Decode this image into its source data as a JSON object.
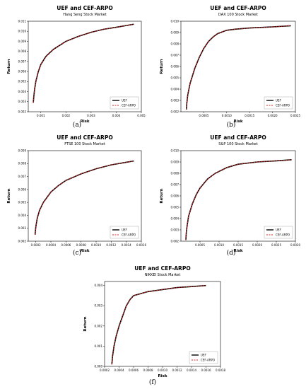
{
  "chart_data": [
    {
      "type": "line",
      "title": "UEF and CEF-ARPO",
      "subtitle": "Hang Seng Stock Market",
      "xlabel": "Risk",
      "ylabel": "Return",
      "caption": "(a)",
      "xlim": [
        0.0005,
        0.005
      ],
      "ylim": [
        0.002,
        0.011
      ],
      "xticks": [
        "0.001",
        "0.002",
        "0.003",
        "0.004",
        "0.005"
      ],
      "xtick_values": [
        0.001,
        0.002,
        0.003,
        0.004,
        0.005
      ],
      "yticks": [
        "0.002",
        "0.003",
        "0.004",
        "0.005",
        "0.006",
        "0.007",
        "0.008",
        "0.009",
        "0.010",
        "0.011"
      ],
      "ytick_values": [
        0.002,
        0.003,
        0.004,
        0.005,
        0.006,
        0.007,
        0.008,
        0.009,
        0.01,
        0.011
      ],
      "legend_position": "bottom-right",
      "series": [
        {
          "name": "UEF",
          "color": "#000000",
          "style": "solid",
          "x": [
            0.0007,
            0.00072,
            0.00075,
            0.0008,
            0.0009,
            0.001,
            0.0012,
            0.0015,
            0.002,
            0.0025,
            0.003,
            0.0035,
            0.004,
            0.0047
          ],
          "y": [
            0.0029,
            0.0035,
            0.0042,
            0.005,
            0.006,
            0.0067,
            0.0075,
            0.0082,
            0.009,
            0.0095,
            0.0099,
            0.0102,
            0.0104,
            0.0107
          ]
        },
        {
          "name": "CEF-ARPO",
          "color": "#e4201e",
          "style": "dashed",
          "x": [
            0.0007,
            0.00072,
            0.00075,
            0.0008,
            0.0009,
            0.001,
            0.0012,
            0.0015,
            0.002,
            0.0025,
            0.003,
            0.0035,
            0.004,
            0.0047
          ],
          "y": [
            0.0029,
            0.0035,
            0.0042,
            0.005,
            0.006,
            0.0067,
            0.0075,
            0.0082,
            0.009,
            0.0095,
            0.0099,
            0.0102,
            0.0104,
            0.0107
          ]
        }
      ]
    },
    {
      "type": "line",
      "title": "UEF and CEF-ARPO",
      "subtitle": "DAX 100 Stock Market",
      "xlabel": "Risk",
      "ylabel": "Return",
      "caption": "(b)",
      "xlim": [
        0.0,
        0.0025
      ],
      "ylim": [
        0.002,
        0.01
      ],
      "xticks": [
        "0.0005",
        "0.0010",
        "0.0015",
        "0.0020",
        "0.0025"
      ],
      "xtick_values": [
        0.0005,
        0.001,
        0.0015,
        0.002,
        0.0025
      ],
      "yticks": [
        "0.002",
        "0.003",
        "0.004",
        "0.005",
        "0.006",
        "0.007",
        "0.008",
        "0.009",
        "0.010"
      ],
      "ytick_values": [
        0.002,
        0.003,
        0.004,
        0.005,
        0.006,
        0.007,
        0.008,
        0.009,
        0.01
      ],
      "legend_position": "bottom-right",
      "series": [
        {
          "name": "UEF",
          "color": "#000000",
          "style": "solid",
          "x": [
            0.00012,
            0.00013,
            0.00015,
            0.0002,
            0.0003,
            0.0004,
            0.0005,
            0.0006,
            0.0007,
            0.0008,
            0.001,
            0.0012,
            0.0015,
            0.002,
            0.0024
          ],
          "y": [
            0.0022,
            0.0028,
            0.0035,
            0.0045,
            0.0058,
            0.0068,
            0.0076,
            0.0082,
            0.0086,
            0.0089,
            0.0092,
            0.0093,
            0.0094,
            0.0095,
            0.0096
          ]
        },
        {
          "name": "CEF-ARPO",
          "color": "#e4201e",
          "style": "dashed",
          "x": [
            0.00012,
            0.00013,
            0.00015,
            0.0002,
            0.0003,
            0.0004,
            0.0005,
            0.0006,
            0.0007,
            0.0008,
            0.001,
            0.0012,
            0.0015,
            0.002,
            0.0024
          ],
          "y": [
            0.0022,
            0.0028,
            0.0035,
            0.0045,
            0.0058,
            0.0068,
            0.0076,
            0.0082,
            0.0086,
            0.0089,
            0.0092,
            0.0093,
            0.0094,
            0.0095,
            0.0096
          ]
        }
      ]
    },
    {
      "type": "line",
      "title": "UEF and CEF-ARPO",
      "subtitle": "FTSE 100 Stock Market",
      "xlabel": "Risk",
      "ylabel": "Return",
      "caption": "(c)",
      "xlim": [
        0.0001,
        0.0016
      ],
      "ylim": [
        0.002,
        0.009
      ],
      "xticks": [
        "0.0002",
        "0.0004",
        "0.0006",
        "0.0008",
        "0.0010",
        "0.0012",
        "0.0014",
        "0.0016"
      ],
      "xtick_values": [
        0.0002,
        0.0004,
        0.0006,
        0.0008,
        0.001,
        0.0012,
        0.0014,
        0.0016
      ],
      "yticks": [
        "0.002",
        "0.003",
        "0.004",
        "0.005",
        "0.006",
        "0.007",
        "0.008",
        "0.009"
      ],
      "ytick_values": [
        0.002,
        0.003,
        0.004,
        0.005,
        0.006,
        0.007,
        0.008,
        0.009
      ],
      "legend_position": "bottom-right",
      "series": [
        {
          "name": "UEF",
          "color": "#000000",
          "style": "solid",
          "x": [
            0.00019,
            0.0002,
            0.00022,
            0.00025,
            0.0003,
            0.0004,
            0.0005,
            0.0006,
            0.0008,
            0.001,
            0.0012,
            0.0014,
            0.0015
          ],
          "y": [
            0.0025,
            0.0031,
            0.0038,
            0.0044,
            0.005,
            0.0058,
            0.0063,
            0.0067,
            0.0072,
            0.0076,
            0.0079,
            0.0081,
            0.0082
          ]
        },
        {
          "name": "CEF-ARPO",
          "color": "#e4201e",
          "style": "dashed",
          "x": [
            0.00019,
            0.0002,
            0.00022,
            0.00025,
            0.0003,
            0.0004,
            0.0005,
            0.0006,
            0.0008,
            0.001,
            0.0012,
            0.0014,
            0.0015
          ],
          "y": [
            0.0025,
            0.0031,
            0.0038,
            0.0044,
            0.005,
            0.0058,
            0.0063,
            0.0067,
            0.0072,
            0.0076,
            0.0079,
            0.0081,
            0.0082
          ]
        }
      ]
    },
    {
      "type": "line",
      "title": "UEF and CEF-ARPO",
      "subtitle": "S&P 100 Stock Market",
      "xlabel": "Risk",
      "ylabel": "Return",
      "caption": "(d)",
      "xlim": [
        0.0,
        0.003
      ],
      "ylim": [
        0.002,
        0.01
      ],
      "xticks": [
        "0.0005",
        "0.0010",
        "0.0015",
        "0.0020",
        "0.0025",
        "0.0030"
      ],
      "xtick_values": [
        0.0005,
        0.001,
        0.0015,
        0.002,
        0.0025,
        0.003
      ],
      "yticks": [
        "0.002",
        "0.003",
        "0.004",
        "0.005",
        "0.006",
        "0.007",
        "0.008",
        "0.009",
        "0.010"
      ],
      "ytick_values": [
        0.002,
        0.003,
        0.004,
        0.005,
        0.006,
        0.007,
        0.008,
        0.009,
        0.01
      ],
      "legend_position": "bottom-right",
      "series": [
        {
          "name": "UEF",
          "color": "#000000",
          "style": "solid",
          "x": [
            0.00013,
            0.00014,
            0.00016,
            0.0002,
            0.0003,
            0.0004,
            0.0005,
            0.0007,
            0.0009,
            0.0012,
            0.0015,
            0.002,
            0.0025,
            0.0029
          ],
          "y": [
            0.0021,
            0.0027,
            0.0033,
            0.0042,
            0.0053,
            0.0061,
            0.0067,
            0.0075,
            0.008,
            0.0085,
            0.0088,
            0.009,
            0.0091,
            0.0092
          ]
        },
        {
          "name": "CEF-ARPO",
          "color": "#e4201e",
          "style": "dashed",
          "x": [
            0.00013,
            0.00014,
            0.00016,
            0.0002,
            0.0003,
            0.0004,
            0.0005,
            0.0007,
            0.0009,
            0.0012,
            0.0015,
            0.002,
            0.0025,
            0.0029
          ],
          "y": [
            0.0021,
            0.0027,
            0.0033,
            0.0042,
            0.0053,
            0.0061,
            0.0067,
            0.0075,
            0.008,
            0.0085,
            0.0088,
            0.009,
            0.0091,
            0.0092
          ]
        }
      ]
    },
    {
      "type": "line",
      "title": "UEF and CEF-ARPO",
      "subtitle": "NIKKEI Stock Market",
      "xlabel": "Risk",
      "ylabel": "Return",
      "caption": "(f)",
      "xlim": [
        0.0002,
        0.0018
      ],
      "ylim": [
        0.0,
        0.0042
      ],
      "xticks": [
        "0.0002",
        "0.0004",
        "0.0006",
        "0.0008",
        "0.0010",
        "0.0012",
        "0.0014",
        "0.0016",
        "0.0018"
      ],
      "xtick_values": [
        0.0002,
        0.0004,
        0.0006,
        0.0008,
        0.001,
        0.0012,
        0.0014,
        0.0016,
        0.0018
      ],
      "yticks": [
        "0.000",
        "0.001",
        "0.002",
        "0.003",
        "0.004"
      ],
      "ytick_values": [
        0.0,
        0.001,
        0.002,
        0.003,
        0.004
      ],
      "legend_position": "bottom-right",
      "series": [
        {
          "name": "UEF",
          "color": "#000000",
          "style": "solid",
          "x": [
            0.0003,
            0.00031,
            0.00033,
            0.00036,
            0.0004,
            0.00045,
            0.0005,
            0.00055,
            0.0006,
            0.0007,
            0.0008,
            0.001,
            0.0012,
            0.0014,
            0.0016
          ],
          "y": [
            0.0001,
            0.0005,
            0.001,
            0.0015,
            0.002,
            0.0025,
            0.003,
            0.0033,
            0.0035,
            0.0036,
            0.0037,
            0.0038,
            0.0039,
            0.00395,
            0.004
          ]
        },
        {
          "name": "CEF-ARPO",
          "color": "#e4201e",
          "style": "dashed",
          "x": [
            0.0003,
            0.00031,
            0.00033,
            0.00036,
            0.0004,
            0.00045,
            0.0005,
            0.00055,
            0.0006,
            0.0007,
            0.0008,
            0.001,
            0.0012,
            0.0014,
            0.0016
          ],
          "y": [
            0.0001,
            0.0005,
            0.001,
            0.0015,
            0.002,
            0.0025,
            0.003,
            0.0033,
            0.0035,
            0.0036,
            0.0037,
            0.0038,
            0.0039,
            0.00395,
            0.004
          ]
        }
      ]
    }
  ]
}
